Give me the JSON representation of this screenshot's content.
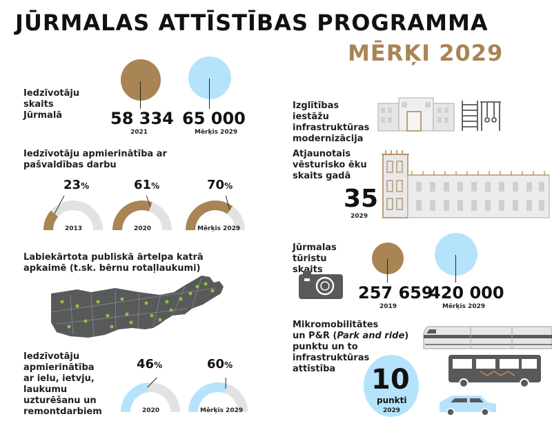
{
  "header": {
    "title": "JŪRMALAS ATTĪSTĪBAS PROGRAMMA",
    "subtitle": "MĒRĶI 2029"
  },
  "colors": {
    "brown": "#a98454",
    "blue": "#b5e3fb",
    "gray": "#e2e2e2",
    "dark": "#58595b",
    "green": "#8cc63f",
    "gold": "#a98454"
  },
  "population": {
    "label": "Iedzīvotāju skaits Jūrmalā",
    "current_value": "58 334",
    "current_year": "2021",
    "target_value": "65 000",
    "target_label": "Mērķis 2029"
  },
  "satisfaction": {
    "label": "Iedzīvotāju apmierinātība ar pašvaldības darbu",
    "gauges": [
      {
        "value": 23,
        "pct_text": "23",
        "year": "2013"
      },
      {
        "value": 61,
        "pct_text": "61",
        "year": "2020"
      },
      {
        "value": 70,
        "pct_text": "70",
        "year": "Mērķis 2029"
      }
    ],
    "unit": "%"
  },
  "public_space": {
    "label": "Labiekārtota publiskā ārtelpa katrā apkaimē (t.sk. bērnu rotaļlaukumi)"
  },
  "streets": {
    "label": "Iedzīvotāju apmierinātība ar ielu, ietvju, laukumu uzturēšanu un remontdarbiem",
    "gauges": [
      {
        "value": 46,
        "pct_text": "46",
        "year": "2020"
      },
      {
        "value": 60,
        "pct_text": "60",
        "year": "Mērķis 2029"
      }
    ],
    "unit": "%"
  },
  "education": {
    "label": "Izglītības iestāžu infrastruktūras modernizācija"
  },
  "heritage": {
    "label": "Atjaunotais vēsturisko ēku skaits gadā",
    "value": "35",
    "year": "2029"
  },
  "tourists": {
    "label": "Jūrmalas tūristu skaits",
    "current_value": "257 659",
    "current_year": "2019",
    "target_value": "420 000",
    "target_label": "Mērķis 2029"
  },
  "mobility": {
    "label_1": "Mikromobilitātes",
    "label_2": "un P&R (",
    "label_2_italic": "Park and ride",
    "label_2_end": ")",
    "label_3": "punktu un to",
    "label_4": "infrastruktūras",
    "label_5": "attīstība",
    "value": "10",
    "unit": "punkti",
    "year": "2029"
  },
  "icons": [
    "school-building-icon",
    "climbing-frame-icon",
    "historic-building-icon",
    "camera-icon",
    "train-icon",
    "bus-icon",
    "car-icon",
    "map-icon"
  ]
}
